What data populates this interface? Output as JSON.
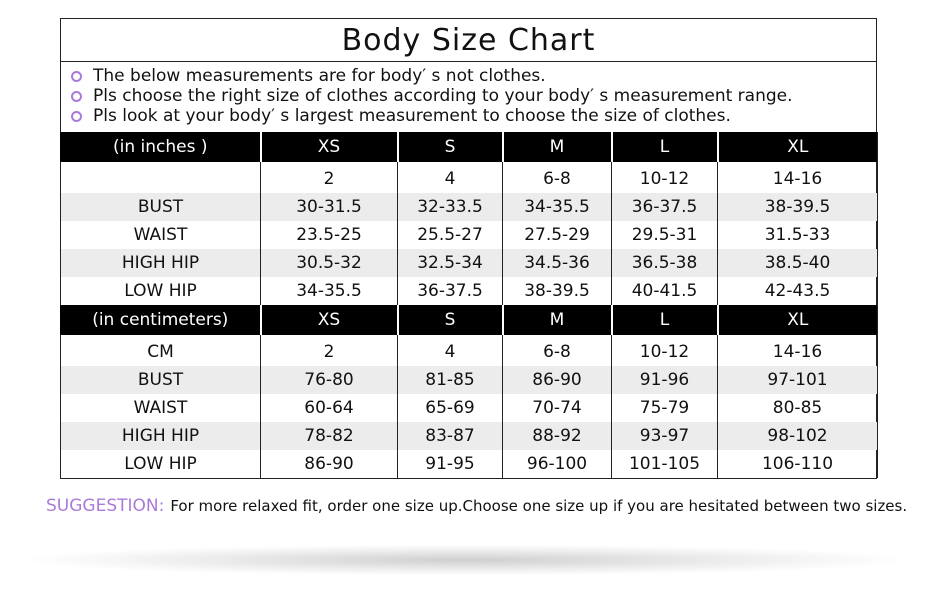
{
  "title": "Body  Size  Chart",
  "notes": [
    "The below measurements are for  body′ s not clothes.",
    "Pls choose the right size of clothes according to your body′ s  measurement range.",
    "Pls look  at your body′ s  largest measurement to choose the size of clothes."
  ],
  "sections": [
    {
      "header": [
        "(in  inches )",
        "XS",
        "S",
        "M",
        "L",
        "XL"
      ],
      "rows": [
        [
          null,
          "2",
          "4",
          "6-8",
          "10-12",
          "14-16"
        ],
        [
          "BUST",
          "30-31.5",
          "32-33.5",
          "34-35.5",
          "36-37.5",
          "38-39.5"
        ],
        [
          "WAIST",
          "23.5-25",
          "25.5-27",
          "27.5-29",
          "29.5-31",
          "31.5-33"
        ],
        [
          "HIGH HIP",
          "30.5-32",
          "32.5-34",
          "34.5-36",
          "36.5-38",
          "38.5-40"
        ],
        [
          "LOW HIP",
          "34-35.5",
          "36-37.5",
          "38-39.5",
          "40-41.5",
          "42-43.5"
        ]
      ]
    },
    {
      "header": [
        "(in centimeters)",
        "XS",
        "S",
        "M",
        "L",
        "XL"
      ],
      "rows": [
        [
          "CM",
          "2",
          "4",
          "6-8",
          "10-12",
          "14-16"
        ],
        [
          "BUST",
          "76-80",
          "81-85",
          "86-90",
          "91-96",
          "97-101"
        ],
        [
          "WAIST",
          "60-64",
          "65-69",
          "70-74",
          "75-79",
          "80-85"
        ],
        [
          "HIGH HIP",
          "78-82",
          "83-87",
          "88-92",
          "93-97",
          "98-102"
        ],
        [
          "LOW HIP",
          "86-90",
          "91-95",
          "96-100",
          "101-105",
          "106-110"
        ]
      ]
    }
  ],
  "suggestion": {
    "label": "SUGGESTION:",
    "text": "For more relaxed fit, order one size up.Choose one size up if you are hesitated between two sizes."
  }
}
